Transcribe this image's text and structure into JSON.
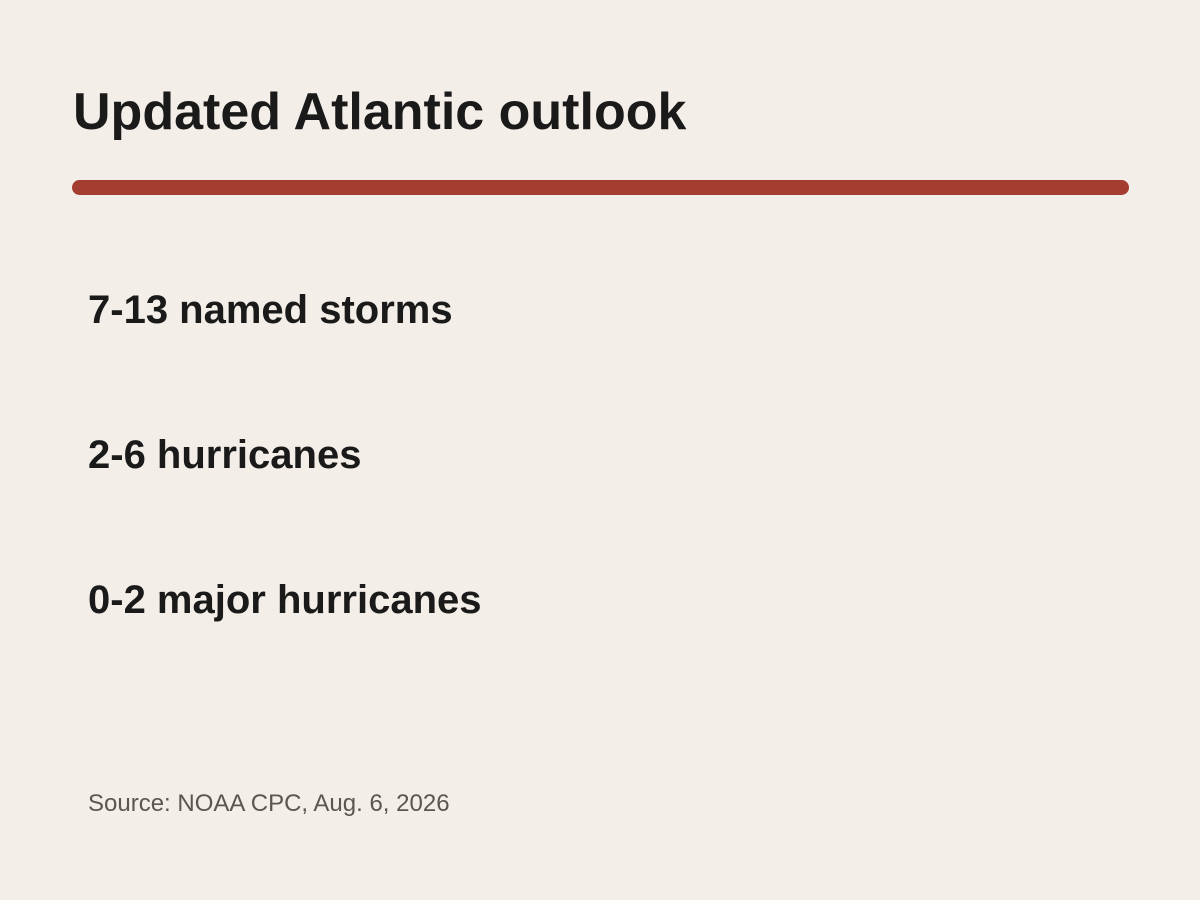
{
  "slide": {
    "title": "Updated Atlantic outlook",
    "accent_color": "#a33d30",
    "items": [
      "7-13 named storms",
      "2-6 hurricanes",
      "0-2 major hurricanes"
    ],
    "source": "Source: NOAA CPC, Aug. 6, 2026"
  }
}
